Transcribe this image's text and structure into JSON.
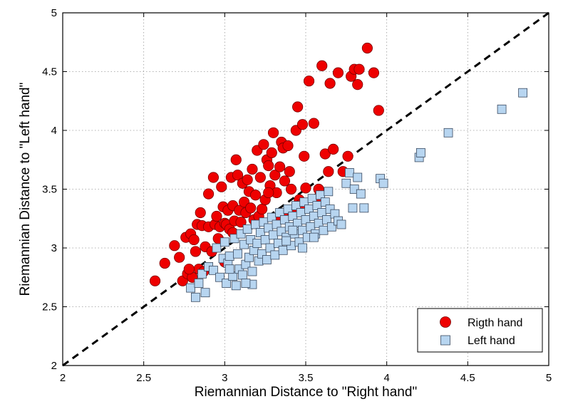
{
  "chart_data": {
    "type": "scatter",
    "xlabel": "Riemannian Distance to \"Right hand\"",
    "ylabel": "Riemannian Distance to \"Left hand\"",
    "xlim": [
      2,
      5
    ],
    "ylim": [
      2,
      5
    ],
    "xticks": [
      "2",
      "2.5",
      "3",
      "3.5",
      "4",
      "4.5",
      "5"
    ],
    "yticks": [
      "2",
      "2.5",
      "3",
      "3.5",
      "4",
      "4.5",
      "5"
    ],
    "grid": true,
    "legend_position": "bottom-right",
    "reference_line": {
      "style": "dashed",
      "from": [
        2,
        2
      ],
      "to": [
        5,
        5
      ],
      "color": "#000000"
    },
    "series": [
      {
        "name": "Rigth hand",
        "marker": "circle",
        "color": "#ee0000",
        "points": [
          [
            2.57,
            2.72
          ],
          [
            2.63,
            2.87
          ],
          [
            2.69,
            3.02
          ],
          [
            2.72,
            2.92
          ],
          [
            2.74,
            2.72
          ],
          [
            2.76,
            3.09
          ],
          [
            2.77,
            2.78
          ],
          [
            2.79,
            3.12
          ],
          [
            2.8,
            2.75
          ],
          [
            2.81,
            3.07
          ],
          [
            2.82,
            2.97
          ],
          [
            2.83,
            3.2
          ],
          [
            2.84,
            2.82
          ],
          [
            2.85,
            3.3
          ],
          [
            2.86,
            3.19
          ],
          [
            2.87,
            2.8
          ],
          [
            2.88,
            3.01
          ],
          [
            2.9,
            3.46
          ],
          [
            2.9,
            3.18
          ],
          [
            2.92,
            2.97
          ],
          [
            2.93,
            3.6
          ],
          [
            2.94,
            3.2
          ],
          [
            2.95,
            3.27
          ],
          [
            2.96,
            3.08
          ],
          [
            2.97,
            3.18
          ],
          [
            2.98,
            3.52
          ],
          [
            2.99,
            3.35
          ],
          [
            3.0,
            3.21
          ],
          [
            3.01,
            3.2
          ],
          [
            3.02,
            3.32
          ],
          [
            3.03,
            3.16
          ],
          [
            3.04,
            3.6
          ],
          [
            3.05,
            3.36
          ],
          [
            3.05,
            3.13
          ],
          [
            3.06,
            3.23
          ],
          [
            3.07,
            3.75
          ],
          [
            3.08,
            3.62
          ],
          [
            3.09,
            3.32
          ],
          [
            3.1,
            3.22
          ],
          [
            3.11,
            3.55
          ],
          [
            3.12,
            3.39
          ],
          [
            3.13,
            3.3
          ],
          [
            3.14,
            3.58
          ],
          [
            3.15,
            3.48
          ],
          [
            3.16,
            3.34
          ],
          [
            3.17,
            3.67
          ],
          [
            3.18,
            3.24
          ],
          [
            3.19,
            3.45
          ],
          [
            3.2,
            3.83
          ],
          [
            3.21,
            3.27
          ],
          [
            3.22,
            3.6
          ],
          [
            3.23,
            3.33
          ],
          [
            3.24,
            3.88
          ],
          [
            3.25,
            3.41
          ],
          [
            3.26,
            3.75
          ],
          [
            3.27,
            3.7
          ],
          [
            3.28,
            3.53
          ],
          [
            3.29,
            3.81
          ],
          [
            3.3,
            3.98
          ],
          [
            3.31,
            3.62
          ],
          [
            3.32,
            3.47
          ],
          [
            3.33,
            3.25
          ],
          [
            3.34,
            3.69
          ],
          [
            3.35,
            3.9
          ],
          [
            3.36,
            3.85
          ],
          [
            3.37,
            3.57
          ],
          [
            3.38,
            3.3
          ],
          [
            3.39,
            3.87
          ],
          [
            3.4,
            3.65
          ],
          [
            3.41,
            3.5
          ],
          [
            3.42,
            3.29
          ],
          [
            3.44,
            4.0
          ],
          [
            3.45,
            4.2
          ],
          [
            3.46,
            3.41
          ],
          [
            3.47,
            3.37
          ],
          [
            3.48,
            4.05
          ],
          [
            3.49,
            3.78
          ],
          [
            3.5,
            3.51
          ],
          [
            3.52,
            4.42
          ],
          [
            3.55,
            4.06
          ],
          [
            3.57,
            3.42
          ],
          [
            3.58,
            3.5
          ],
          [
            3.6,
            4.55
          ],
          [
            3.62,
            3.8
          ],
          [
            3.64,
            3.65
          ],
          [
            3.65,
            4.4
          ],
          [
            3.67,
            3.84
          ],
          [
            3.7,
            4.49
          ],
          [
            3.73,
            3.65
          ],
          [
            3.76,
            3.78
          ],
          [
            3.78,
            4.46
          ],
          [
            3.8,
            4.52
          ],
          [
            3.82,
            4.39
          ],
          [
            3.83,
            4.52
          ],
          [
            3.88,
            4.7
          ],
          [
            3.92,
            4.49
          ],
          [
            3.95,
            4.17
          ],
          [
            2.78,
            2.82
          ],
          [
            3.0,
            2.88
          ],
          [
            3.27,
            3.47
          ]
        ]
      },
      {
        "name": "Left hand",
        "marker": "square",
        "color": "#b7d5f0",
        "points": [
          [
            2.79,
            2.66
          ],
          [
            2.82,
            2.58
          ],
          [
            2.84,
            2.7
          ],
          [
            2.86,
            2.78
          ],
          [
            2.88,
            2.62
          ],
          [
            2.9,
            2.84
          ],
          [
            2.93,
            2.81
          ],
          [
            2.95,
            3.0
          ],
          [
            2.97,
            2.75
          ],
          [
            2.99,
            2.91
          ],
          [
            3.0,
            3.05
          ],
          [
            3.01,
            2.7
          ],
          [
            3.02,
            2.87
          ],
          [
            3.03,
            2.93
          ],
          [
            3.05,
            2.76
          ],
          [
            3.06,
            3.08
          ],
          [
            3.07,
            2.68
          ],
          [
            3.08,
            2.95
          ],
          [
            3.09,
            2.82
          ],
          [
            3.1,
            3.12
          ],
          [
            3.11,
            2.77
          ],
          [
            3.12,
            3.03
          ],
          [
            3.13,
            2.86
          ],
          [
            3.14,
            3.16
          ],
          [
            3.15,
            2.92
          ],
          [
            3.16,
            3.07
          ],
          [
            3.17,
            2.8
          ],
          [
            3.18,
            2.98
          ],
          [
            3.19,
            3.2
          ],
          [
            3.2,
            3.04
          ],
          [
            3.21,
            2.89
          ],
          [
            3.22,
            3.13
          ],
          [
            3.23,
            2.95
          ],
          [
            3.24,
            3.22
          ],
          [
            3.25,
            3.07
          ],
          [
            3.26,
            2.9
          ],
          [
            3.27,
            3.17
          ],
          [
            3.28,
            3.0
          ],
          [
            3.29,
            3.26
          ],
          [
            3.3,
            3.11
          ],
          [
            3.31,
            2.94
          ],
          [
            3.32,
            3.2
          ],
          [
            3.33,
            3.04
          ],
          [
            3.34,
            3.3
          ],
          [
            3.35,
            3.14
          ],
          [
            3.36,
            2.98
          ],
          [
            3.37,
            3.24
          ],
          [
            3.38,
            3.09
          ],
          [
            3.39,
            3.33
          ],
          [
            3.4,
            3.18
          ],
          [
            3.41,
            3.02
          ],
          [
            3.42,
            3.27
          ],
          [
            3.43,
            3.12
          ],
          [
            3.44,
            3.36
          ],
          [
            3.45,
            3.21
          ],
          [
            3.46,
            3.05
          ],
          [
            3.47,
            3.3
          ],
          [
            3.48,
            3.15
          ],
          [
            3.49,
            3.39
          ],
          [
            3.5,
            3.24
          ],
          [
            3.51,
            3.09
          ],
          [
            3.52,
            3.33
          ],
          [
            3.53,
            3.18
          ],
          [
            3.54,
            3.42
          ],
          [
            3.55,
            3.27
          ],
          [
            3.56,
            3.12
          ],
          [
            3.57,
            3.36
          ],
          [
            3.58,
            3.21
          ],
          [
            3.59,
            3.45
          ],
          [
            3.6,
            3.3
          ],
          [
            3.61,
            3.15
          ],
          [
            3.62,
            3.39
          ],
          [
            3.63,
            3.24
          ],
          [
            3.64,
            3.48
          ],
          [
            3.65,
            3.33
          ],
          [
            3.66,
            3.18
          ],
          [
            3.68,
            3.29
          ],
          [
            3.7,
            3.23
          ],
          [
            3.72,
            3.2
          ],
          [
            3.75,
            3.55
          ],
          [
            3.77,
            3.64
          ],
          [
            3.79,
            3.34
          ],
          [
            3.8,
            3.5
          ],
          [
            3.82,
            3.6
          ],
          [
            3.84,
            3.46
          ],
          [
            3.86,
            3.34
          ],
          [
            3.96,
            3.59
          ],
          [
            3.98,
            3.55
          ],
          [
            4.2,
            3.77
          ],
          [
            4.21,
            3.81
          ],
          [
            4.38,
            3.98
          ],
          [
            4.71,
            4.18
          ],
          [
            4.84,
            4.32
          ],
          [
            3.55,
            3.09
          ],
          [
            3.48,
            3.0
          ],
          [
            3.42,
            3.15
          ],
          [
            3.38,
            3.06
          ],
          [
            3.17,
            2.69
          ],
          [
            3.13,
            2.7
          ],
          [
            3.03,
            2.82
          ]
        ]
      }
    ]
  }
}
